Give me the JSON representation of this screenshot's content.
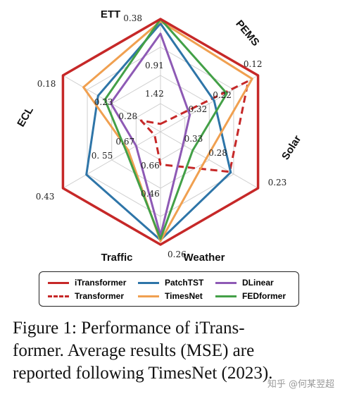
{
  "chart_data": {
    "type": "radar",
    "axes": [
      {
        "name": "ETT",
        "outer_tick": "0.38",
        "ticks": [
          "0.91",
          "1.42"
        ]
      },
      {
        "name": "PEMS",
        "outer_tick": "0.12",
        "ticks": [
          "0.22",
          "0.32"
        ]
      },
      {
        "name": "Solar",
        "outer_tick": "0.23",
        "ticks": [
          "0.28",
          "0.33"
        ]
      },
      {
        "name": "Weather",
        "outer_tick": "0.26",
        "ticks": [
          "0.46",
          "0.66"
        ]
      },
      {
        "name": "Traffic",
        "outer_tick": "0.43",
        "ticks": [
          "0. 55",
          "0.67"
        ]
      },
      {
        "name": "ECL",
        "outer_tick": "0.18",
        "ticks": [
          "0.23",
          "0.28"
        ]
      }
    ],
    "series_scale": "normalized radius, 1 = outer hexagon (best)",
    "series": [
      {
        "name": "iTransformer",
        "color": "#c62828",
        "dashed": false,
        "values": [
          1.0,
          1.0,
          1.0,
          1.0,
          1.0,
          1.0
        ]
      },
      {
        "name": "Transformer",
        "color": "#c62828",
        "dashed": true,
        "values": [
          0.07,
          0.9,
          0.71,
          0.29,
          0.06,
          0.2
        ]
      },
      {
        "name": "PatchTST",
        "color": "#2e75a8",
        "dashed": false,
        "values": [
          0.96,
          0.55,
          0.72,
          0.96,
          0.76,
          0.64
        ]
      },
      {
        "name": "TimesNet",
        "color": "#f0a050",
        "dashed": false,
        "values": [
          0.98,
          0.94,
          0.47,
          0.97,
          0.33,
          0.79
        ]
      },
      {
        "name": "DLinear",
        "color": "#8e5ab5",
        "dashed": false,
        "values": [
          0.87,
          0.3,
          0.23,
          0.92,
          0.25,
          0.51
        ]
      },
      {
        "name": "FEDformer",
        "color": "#43a047",
        "dashed": false,
        "values": [
          1.0,
          0.68,
          0.33,
          0.95,
          0.35,
          0.57
        ]
      }
    ]
  },
  "legend": [
    {
      "label": "iTransformer"
    },
    {
      "label": "PatchTST"
    },
    {
      "label": "DLinear"
    },
    {
      "label": "Transformer"
    },
    {
      "label": "TimesNet"
    },
    {
      "label": "FEDformer"
    }
  ],
  "caption": {
    "line1": "Figure 1:  Performance of iTrans-",
    "line2": "former.  Average results (MSE) are",
    "line3": "reported following TimesNet (2023)."
  },
  "watermark": "知乎 @何某翌超"
}
